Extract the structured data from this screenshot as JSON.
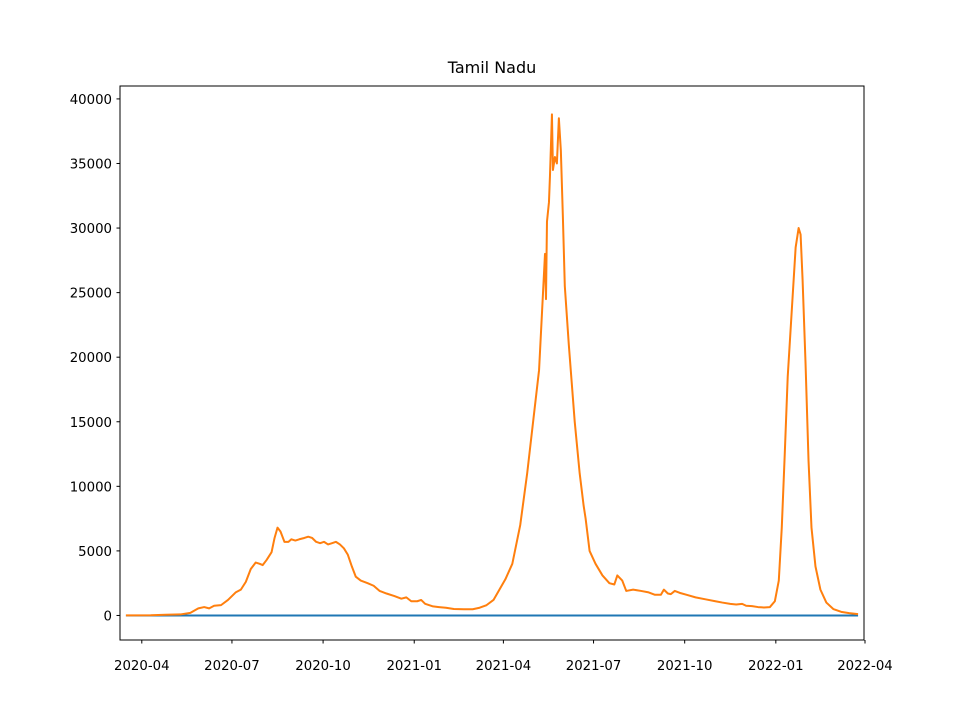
{
  "chart_data": {
    "type": "line",
    "title": "Tamil Nadu",
    "xlabel": "",
    "ylabel": "",
    "x_range": [
      "2020-03-10",
      "2022-03-31"
    ],
    "ylim": [
      -1900,
      41000
    ],
    "x_ticks": [
      "2020-04",
      "2020-07",
      "2020-10",
      "2021-01",
      "2021-04",
      "2021-07",
      "2021-10",
      "2022-01",
      "2022-04"
    ],
    "y_ticks": [
      0,
      5000,
      10000,
      15000,
      20000,
      25000,
      30000,
      35000,
      40000
    ],
    "grid": false,
    "legend": "none",
    "series": [
      {
        "color": "#1f77b4",
        "points": [
          [
            "2020-03-17",
            0
          ],
          [
            "2022-03-24",
            0
          ]
        ]
      },
      {
        "color": "#ff7f0e",
        "points": [
          [
            "2020-03-17",
            10
          ],
          [
            "2020-04-10",
            20
          ],
          [
            "2020-04-25",
            60
          ],
          [
            "2020-05-10",
            80
          ],
          [
            "2020-05-20",
            200
          ],
          [
            "2020-05-28",
            550
          ],
          [
            "2020-06-03",
            650
          ],
          [
            "2020-06-08",
            550
          ],
          [
            "2020-06-13",
            750
          ],
          [
            "2020-06-20",
            800
          ],
          [
            "2020-06-27",
            1200
          ],
          [
            "2020-07-05",
            1800
          ],
          [
            "2020-07-10",
            2000
          ],
          [
            "2020-07-15",
            2600
          ],
          [
            "2020-07-20",
            3600
          ],
          [
            "2020-07-25",
            4100
          ],
          [
            "2020-07-29",
            4000
          ],
          [
            "2020-08-01",
            3900
          ],
          [
            "2020-08-05",
            4300
          ],
          [
            "2020-08-10",
            4900
          ],
          [
            "2020-08-13",
            6000
          ],
          [
            "2020-08-16",
            6800
          ],
          [
            "2020-08-19",
            6500
          ],
          [
            "2020-08-23",
            5700
          ],
          [
            "2020-08-27",
            5700
          ],
          [
            "2020-08-30",
            5900
          ],
          [
            "2020-09-03",
            5800
          ],
          [
            "2020-09-07",
            5900
          ],
          [
            "2020-09-12",
            6000
          ],
          [
            "2020-09-16",
            6100
          ],
          [
            "2020-09-20",
            6000
          ],
          [
            "2020-09-24",
            5700
          ],
          [
            "2020-09-28",
            5600
          ],
          [
            "2020-10-02",
            5700
          ],
          [
            "2020-10-06",
            5500
          ],
          [
            "2020-10-10",
            5600
          ],
          [
            "2020-10-14",
            5700
          ],
          [
            "2020-10-18",
            5500
          ],
          [
            "2020-10-22",
            5200
          ],
          [
            "2020-10-26",
            4700
          ],
          [
            "2020-10-30",
            3800
          ],
          [
            "2020-11-03",
            3000
          ],
          [
            "2020-11-08",
            2700
          ],
          [
            "2020-11-15",
            2500
          ],
          [
            "2020-11-21",
            2300
          ],
          [
            "2020-11-27",
            1900
          ],
          [
            "2020-12-04",
            1700
          ],
          [
            "2020-12-12",
            1500
          ],
          [
            "2020-12-19",
            1300
          ],
          [
            "2020-12-24",
            1400
          ],
          [
            "2020-12-29",
            1100
          ],
          [
            "2021-01-04",
            1100
          ],
          [
            "2021-01-08",
            1200
          ],
          [
            "2021-01-12",
            900
          ],
          [
            "2021-01-20",
            700
          ],
          [
            "2021-01-26",
            650
          ],
          [
            "2021-02-02",
            600
          ],
          [
            "2021-02-10",
            500
          ],
          [
            "2021-02-20",
            480
          ],
          [
            "2021-03-01",
            480
          ],
          [
            "2021-03-08",
            600
          ],
          [
            "2021-03-15",
            800
          ],
          [
            "2021-03-22",
            1200
          ],
          [
            "2021-03-28",
            2000
          ],
          [
            "2021-04-03",
            2800
          ],
          [
            "2021-04-10",
            4000
          ],
          [
            "2021-04-18",
            7000
          ],
          [
            "2021-04-25",
            11000
          ],
          [
            "2021-05-01",
            15000
          ],
          [
            "2021-05-07",
            19000
          ],
          [
            "2021-05-11",
            25000
          ],
          [
            "2021-05-13",
            28000
          ],
          [
            "2021-05-14",
            24500
          ],
          [
            "2021-05-15",
            30500
          ],
          [
            "2021-05-17",
            32000
          ],
          [
            "2021-05-18",
            34000
          ],
          [
            "2021-05-20",
            38800
          ],
          [
            "2021-05-21",
            34500
          ],
          [
            "2021-05-23",
            35500
          ],
          [
            "2021-05-25",
            35000
          ],
          [
            "2021-05-27",
            38500
          ],
          [
            "2021-05-29",
            36000
          ],
          [
            "2021-05-31",
            31000
          ],
          [
            "2021-06-02",
            25500
          ],
          [
            "2021-06-06",
            21000
          ],
          [
            "2021-06-12",
            15000
          ],
          [
            "2021-06-17",
            11000
          ],
          [
            "2021-06-21",
            8500
          ],
          [
            "2021-06-23",
            7500
          ],
          [
            "2021-06-27",
            5000
          ],
          [
            "2021-07-03",
            4000
          ],
          [
            "2021-07-10",
            3100
          ],
          [
            "2021-07-17",
            2500
          ],
          [
            "2021-07-22",
            2400
          ],
          [
            "2021-07-25",
            3100
          ],
          [
            "2021-07-30",
            2700
          ],
          [
            "2021-08-03",
            1900
          ],
          [
            "2021-08-10",
            2000
          ],
          [
            "2021-08-18",
            1900
          ],
          [
            "2021-08-25",
            1800
          ],
          [
            "2021-09-01",
            1600
          ],
          [
            "2021-09-07",
            1600
          ],
          [
            "2021-09-10",
            2000
          ],
          [
            "2021-09-14",
            1700
          ],
          [
            "2021-09-17",
            1650
          ],
          [
            "2021-09-21",
            1900
          ],
          [
            "2021-09-26",
            1750
          ],
          [
            "2021-10-03",
            1600
          ],
          [
            "2021-10-12",
            1400
          ],
          [
            "2021-10-22",
            1250
          ],
          [
            "2021-11-01",
            1100
          ],
          [
            "2021-11-08",
            1000
          ],
          [
            "2021-11-16",
            900
          ],
          [
            "2021-11-22",
            850
          ],
          [
            "2021-11-28",
            900
          ],
          [
            "2021-12-02",
            750
          ],
          [
            "2021-12-08",
            720
          ],
          [
            "2021-12-14",
            650
          ],
          [
            "2021-12-20",
            620
          ],
          [
            "2021-12-26",
            650
          ],
          [
            "2021-12-31",
            1100
          ],
          [
            "2022-01-04",
            2700
          ],
          [
            "2022-01-07",
            6800
          ],
          [
            "2022-01-10",
            12500
          ],
          [
            "2022-01-13",
            18500
          ],
          [
            "2022-01-17",
            23500
          ],
          [
            "2022-01-21",
            28500
          ],
          [
            "2022-01-24",
            30000
          ],
          [
            "2022-01-26",
            29500
          ],
          [
            "2022-01-28",
            26000
          ],
          [
            "2022-01-31",
            19500
          ],
          [
            "2022-02-03",
            12000
          ],
          [
            "2022-02-06",
            6800
          ],
          [
            "2022-02-10",
            3800
          ],
          [
            "2022-02-15",
            2000
          ],
          [
            "2022-02-21",
            1000
          ],
          [
            "2022-02-28",
            500
          ],
          [
            "2022-03-08",
            280
          ],
          [
            "2022-03-16",
            180
          ],
          [
            "2022-03-24",
            110
          ]
        ]
      }
    ]
  }
}
